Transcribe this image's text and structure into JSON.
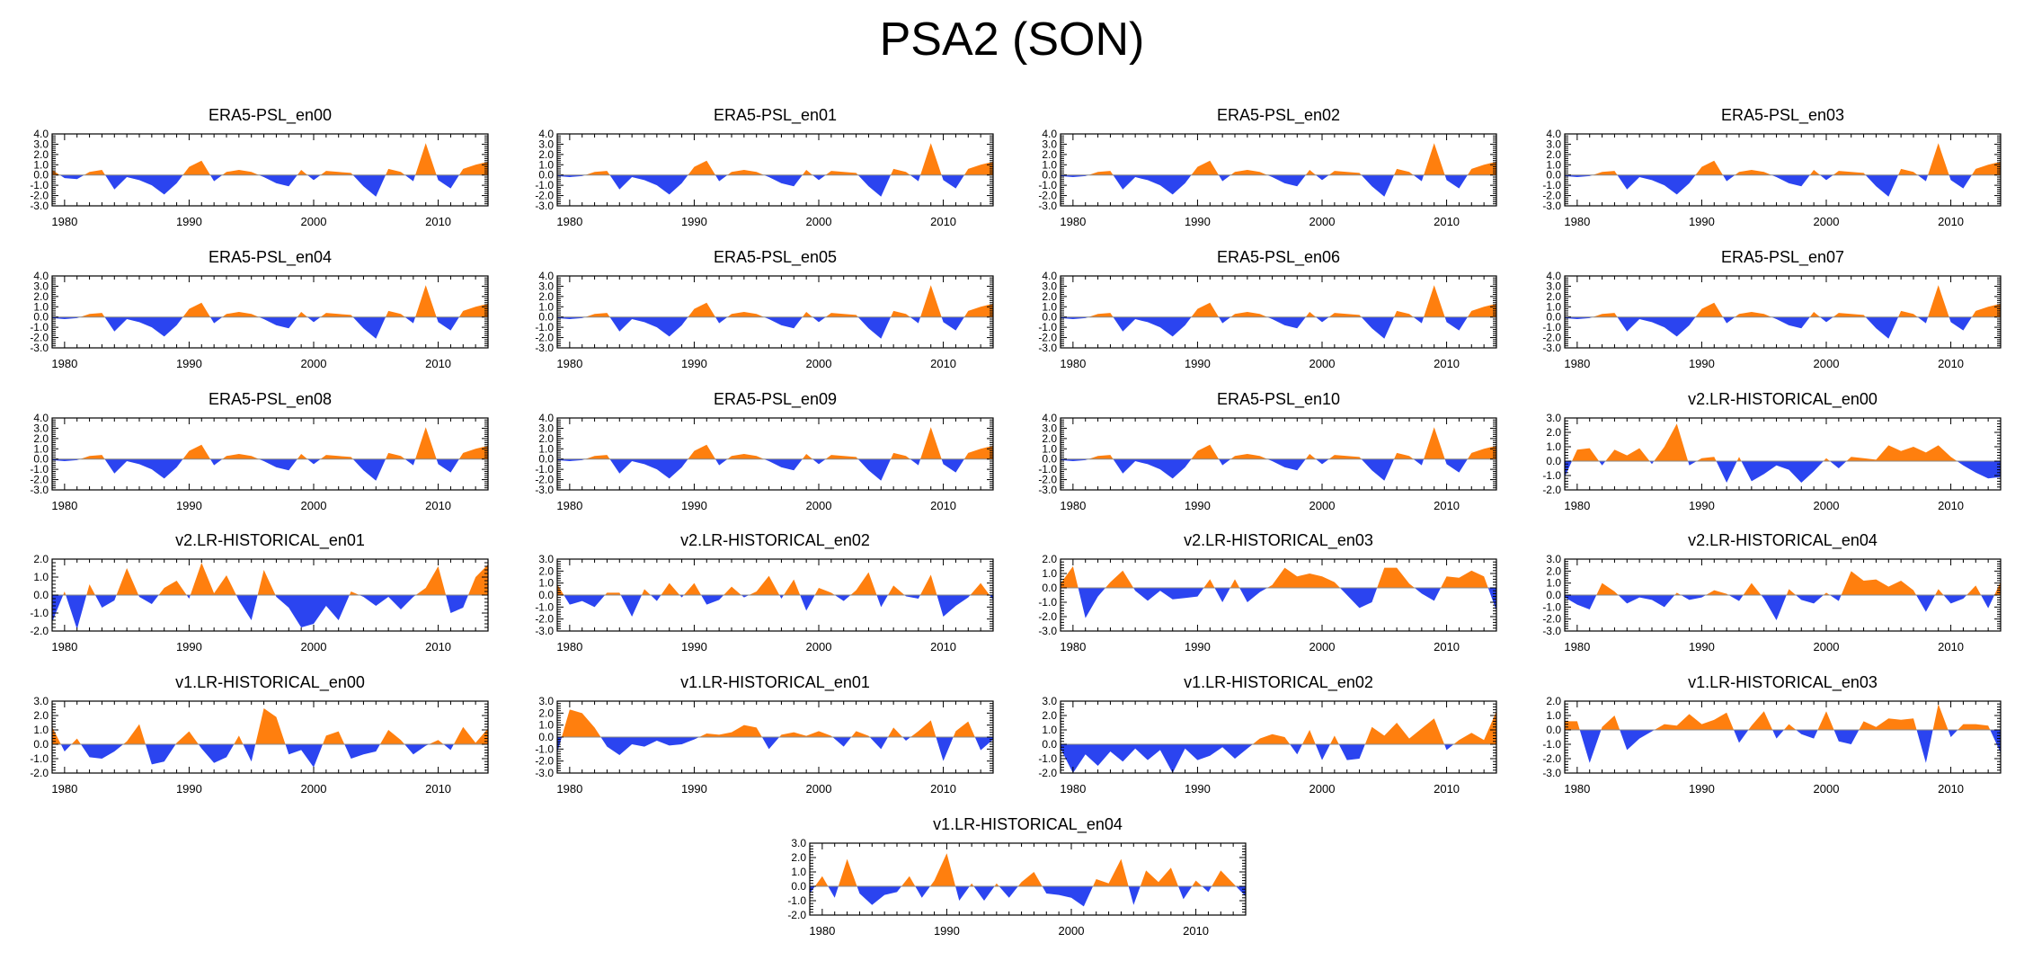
{
  "figure": {
    "title": "PSA2 (SON)"
  },
  "colors": {
    "positive": "#ff7f0e",
    "negative": "#2b44f0",
    "axis": "#000000",
    "zero_line": "#888888"
  },
  "chart_data": [
    {
      "type": "area",
      "title": "ERA5-PSL_en00",
      "x_start": 1979,
      "x_end": 2014,
      "xticks": [
        1980,
        1990,
        2000,
        2010
      ],
      "yticks": [
        "4.0",
        "3.0",
        "2.0",
        "1.0",
        "0.0",
        "-1.0",
        "-2.0",
        "-3.0"
      ],
      "ylim": [
        -3,
        4
      ],
      "values": [
        0.5,
        -0.3,
        -0.4,
        0.3,
        0.5,
        -1.4,
        -0.2,
        -0.5,
        -1.0,
        -1.9,
        -0.8,
        0.8,
        1.4,
        -0.6,
        0.3,
        0.5,
        0.3,
        -0.2,
        -0.8,
        -1.1,
        0.5,
        -0.5,
        0.4,
        0.3,
        0.2,
        -1.1,
        -2.1,
        0.6,
        0.3,
        -0.6,
        3.1,
        -0.5,
        -1.3,
        0.6,
        1.0,
        1.3
      ]
    },
    {
      "type": "area",
      "title": "ERA5-PSL_en01",
      "x_start": 1979,
      "x_end": 2014,
      "xticks": [
        1980,
        1990,
        2000,
        2010
      ],
      "yticks": [
        "4.0",
        "3.0",
        "2.0",
        "1.0",
        "0.0",
        "-1.0",
        "-2.0",
        "-3.0"
      ],
      "ylim": [
        -3,
        4
      ],
      "values": [
        -0.1,
        -0.2,
        -0.1,
        0.3,
        0.4,
        -1.4,
        -0.2,
        -0.5,
        -1.0,
        -1.9,
        -0.8,
        0.8,
        1.4,
        -0.6,
        0.3,
        0.5,
        0.3,
        -0.2,
        -0.8,
        -1.1,
        0.5,
        -0.5,
        0.4,
        0.3,
        0.2,
        -1.1,
        -2.1,
        0.6,
        0.3,
        -0.6,
        3.1,
        -0.5,
        -1.3,
        0.6,
        1.0,
        1.3
      ]
    },
    {
      "type": "area",
      "title": "ERA5-PSL_en02",
      "x_start": 1979,
      "x_end": 2014,
      "xticks": [
        1980,
        1990,
        2000,
        2010
      ],
      "yticks": [
        "4.0",
        "3.0",
        "2.0",
        "1.0",
        "0.0",
        "-1.0",
        "-2.0",
        "-3.0"
      ],
      "ylim": [
        -3,
        4
      ],
      "values": [
        -0.1,
        -0.2,
        -0.1,
        0.3,
        0.4,
        -1.4,
        -0.2,
        -0.5,
        -1.0,
        -1.9,
        -0.8,
        0.8,
        1.4,
        -0.6,
        0.3,
        0.5,
        0.3,
        -0.2,
        -0.8,
        -1.1,
        0.5,
        -0.5,
        0.4,
        0.3,
        0.2,
        -1.1,
        -2.1,
        0.6,
        0.3,
        -0.6,
        3.1,
        -0.5,
        -1.3,
        0.6,
        1.0,
        1.3
      ]
    },
    {
      "type": "area",
      "title": "ERA5-PSL_en03",
      "x_start": 1979,
      "x_end": 2014,
      "xticks": [
        1980,
        1990,
        2000,
        2010
      ],
      "yticks": [
        "4.0",
        "3.0",
        "2.0",
        "1.0",
        "0.0",
        "-1.0",
        "-2.0",
        "-3.0"
      ],
      "ylim": [
        -3,
        4
      ],
      "values": [
        -0.1,
        -0.2,
        -0.1,
        0.3,
        0.4,
        -1.4,
        -0.2,
        -0.5,
        -1.0,
        -1.9,
        -0.8,
        0.8,
        1.4,
        -0.6,
        0.3,
        0.5,
        0.3,
        -0.2,
        -0.8,
        -1.1,
        0.5,
        -0.5,
        0.4,
        0.3,
        0.2,
        -1.1,
        -2.1,
        0.6,
        0.3,
        -0.6,
        3.1,
        -0.5,
        -1.3,
        0.6,
        1.0,
        1.3
      ]
    },
    {
      "type": "area",
      "title": "ERA5-PSL_en04",
      "x_start": 1979,
      "x_end": 2014,
      "xticks": [
        1980,
        1990,
        2000,
        2010
      ],
      "yticks": [
        "4.0",
        "3.0",
        "2.0",
        "1.0",
        "0.0",
        "-1.0",
        "-2.0",
        "-3.0"
      ],
      "ylim": [
        -3,
        4
      ],
      "values": [
        -0.1,
        -0.2,
        -0.1,
        0.3,
        0.4,
        -1.4,
        -0.2,
        -0.5,
        -1.0,
        -1.9,
        -0.8,
        0.8,
        1.4,
        -0.6,
        0.3,
        0.5,
        0.3,
        -0.2,
        -0.8,
        -1.1,
        0.5,
        -0.5,
        0.4,
        0.3,
        0.2,
        -1.1,
        -2.1,
        0.6,
        0.3,
        -0.6,
        3.1,
        -0.5,
        -1.3,
        0.6,
        1.0,
        1.3
      ]
    },
    {
      "type": "area",
      "title": "ERA5-PSL_en05",
      "x_start": 1979,
      "x_end": 2014,
      "xticks": [
        1980,
        1990,
        2000,
        2010
      ],
      "yticks": [
        "4.0",
        "3.0",
        "2.0",
        "1.0",
        "0.0",
        "-1.0",
        "-2.0",
        "-3.0"
      ],
      "ylim": [
        -3,
        4
      ],
      "values": [
        -0.1,
        -0.2,
        -0.1,
        0.3,
        0.4,
        -1.4,
        -0.2,
        -0.5,
        -1.0,
        -1.9,
        -0.8,
        0.8,
        1.4,
        -0.6,
        0.3,
        0.5,
        0.3,
        -0.2,
        -0.8,
        -1.1,
        0.5,
        -0.5,
        0.4,
        0.3,
        0.2,
        -1.1,
        -2.1,
        0.6,
        0.3,
        -0.6,
        3.1,
        -0.5,
        -1.3,
        0.6,
        1.0,
        1.3
      ]
    },
    {
      "type": "area",
      "title": "ERA5-PSL_en06",
      "x_start": 1979,
      "x_end": 2014,
      "xticks": [
        1980,
        1990,
        2000,
        2010
      ],
      "yticks": [
        "4.0",
        "3.0",
        "2.0",
        "1.0",
        "0.0",
        "-1.0",
        "-2.0",
        "-3.0"
      ],
      "ylim": [
        -3,
        4
      ],
      "values": [
        -0.1,
        -0.2,
        -0.1,
        0.3,
        0.4,
        -1.4,
        -0.2,
        -0.5,
        -1.0,
        -1.9,
        -0.8,
        0.8,
        1.4,
        -0.6,
        0.3,
        0.5,
        0.3,
        -0.2,
        -0.8,
        -1.1,
        0.5,
        -0.5,
        0.4,
        0.3,
        0.2,
        -1.1,
        -2.1,
        0.6,
        0.3,
        -0.6,
        3.1,
        -0.5,
        -1.3,
        0.6,
        1.0,
        1.3
      ]
    },
    {
      "type": "area",
      "title": "ERA5-PSL_en07",
      "x_start": 1979,
      "x_end": 2014,
      "xticks": [
        1980,
        1990,
        2000,
        2010
      ],
      "yticks": [
        "4.0",
        "3.0",
        "2.0",
        "1.0",
        "0.0",
        "-1.0",
        "-2.0",
        "-3.0"
      ],
      "ylim": [
        -3,
        4
      ],
      "values": [
        -0.1,
        -0.2,
        -0.1,
        0.3,
        0.4,
        -1.4,
        -0.2,
        -0.5,
        -1.0,
        -1.9,
        -0.8,
        0.8,
        1.4,
        -0.6,
        0.3,
        0.5,
        0.3,
        -0.2,
        -0.8,
        -1.1,
        0.5,
        -0.5,
        0.4,
        0.3,
        0.2,
        -1.1,
        -2.1,
        0.6,
        0.3,
        -0.6,
        3.1,
        -0.5,
        -1.3,
        0.6,
        1.0,
        1.3
      ]
    },
    {
      "type": "area",
      "title": "ERA5-PSL_en08",
      "x_start": 1979,
      "x_end": 2014,
      "xticks": [
        1980,
        1990,
        2000,
        2010
      ],
      "yticks": [
        "4.0",
        "3.0",
        "2.0",
        "1.0",
        "0.0",
        "-1.0",
        "-2.0",
        "-3.0"
      ],
      "ylim": [
        -3,
        4
      ],
      "values": [
        -0.1,
        -0.2,
        -0.1,
        0.3,
        0.4,
        -1.4,
        -0.2,
        -0.5,
        -1.0,
        -1.9,
        -0.8,
        0.8,
        1.4,
        -0.6,
        0.3,
        0.5,
        0.3,
        -0.2,
        -0.8,
        -1.1,
        0.5,
        -0.5,
        0.4,
        0.3,
        0.2,
        -1.1,
        -2.1,
        0.6,
        0.3,
        -0.6,
        3.1,
        -0.5,
        -1.3,
        0.6,
        1.0,
        1.3
      ]
    },
    {
      "type": "area",
      "title": "ERA5-PSL_en09",
      "x_start": 1979,
      "x_end": 2014,
      "xticks": [
        1980,
        1990,
        2000,
        2010
      ],
      "yticks": [
        "4.0",
        "3.0",
        "2.0",
        "1.0",
        "0.0",
        "-1.0",
        "-2.0",
        "-3.0"
      ],
      "ylim": [
        -3,
        4
      ],
      "values": [
        -0.1,
        -0.2,
        -0.1,
        0.3,
        0.4,
        -1.4,
        -0.2,
        -0.5,
        -1.0,
        -1.9,
        -0.8,
        0.8,
        1.4,
        -0.6,
        0.3,
        0.5,
        0.3,
        -0.2,
        -0.8,
        -1.1,
        0.5,
        -0.5,
        0.4,
        0.3,
        0.2,
        -1.1,
        -2.1,
        0.6,
        0.3,
        -0.6,
        3.1,
        -0.5,
        -1.3,
        0.6,
        1.0,
        1.3
      ]
    },
    {
      "type": "area",
      "title": "ERA5-PSL_en10",
      "x_start": 1979,
      "x_end": 2014,
      "xticks": [
        1980,
        1990,
        2000,
        2010
      ],
      "yticks": [
        "4.0",
        "3.0",
        "2.0",
        "1.0",
        "0.0",
        "-1.0",
        "-2.0",
        "-3.0"
      ],
      "ylim": [
        -3,
        4
      ],
      "values": [
        -0.1,
        -0.2,
        -0.1,
        0.3,
        0.4,
        -1.4,
        -0.2,
        -0.5,
        -1.0,
        -1.9,
        -0.8,
        0.8,
        1.4,
        -0.6,
        0.3,
        0.5,
        0.3,
        -0.2,
        -0.8,
        -1.1,
        0.5,
        -0.5,
        0.4,
        0.3,
        0.2,
        -1.1,
        -2.1,
        0.6,
        0.3,
        -0.6,
        3.1,
        -0.5,
        -1.3,
        0.6,
        1.0,
        1.3
      ]
    },
    {
      "type": "area",
      "title": "v2.LR-HISTORICAL_en00",
      "x_start": 1979,
      "x_end": 2014,
      "xticks": [
        1980,
        1990,
        2000,
        2010
      ],
      "yticks": [
        "3.0",
        "2.0",
        "1.0",
        "0.0",
        "-1.0",
        "-2.0"
      ],
      "ylim": [
        -2,
        3
      ],
      "values": [
        -1.1,
        0.8,
        0.9,
        -0.3,
        0.8,
        0.4,
        0.9,
        -0.2,
        1.0,
        2.6,
        -0.3,
        0.2,
        0.3,
        -1.5,
        0.3,
        -1.4,
        -0.9,
        -0.3,
        -0.6,
        -1.5,
        -0.7,
        0.2,
        -0.5,
        0.3,
        0.2,
        0.1,
        1.1,
        0.7,
        1.0,
        0.6,
        1.1,
        0.3,
        -0.3,
        -0.8,
        -1.2,
        -1.1
      ]
    },
    {
      "type": "area",
      "title": "v2.LR-HISTORICAL_en01",
      "x_start": 1979,
      "x_end": 2014,
      "xticks": [
        1980,
        1990,
        2000,
        2010
      ],
      "yticks": [
        "2.0",
        "1.0",
        "0.0",
        "-1.0",
        "-2.0"
      ],
      "ylim": [
        -2,
        2
      ],
      "values": [
        -1.5,
        0.2,
        -1.9,
        0.6,
        -0.7,
        -0.3,
        1.5,
        -0.1,
        -0.5,
        0.4,
        0.8,
        -0.2,
        1.8,
        0.1,
        1.1,
        -0.3,
        -1.4,
        1.4,
        -0.1,
        -0.7,
        -1.8,
        -1.6,
        -0.6,
        -1.4,
        0.2,
        -0.1,
        -0.6,
        -0.1,
        -0.8,
        -0.1,
        0.4,
        1.6,
        -1.0,
        -0.7,
        1.0,
        1.7
      ]
    },
    {
      "type": "area",
      "title": "v2.LR-HISTORICAL_en02",
      "x_start": 1979,
      "x_end": 2014,
      "xticks": [
        1980,
        1990,
        2000,
        2010
      ],
      "yticks": [
        "3.0",
        "2.0",
        "1.0",
        "0.0",
        "-1.0",
        "-2.0",
        "-3.0"
      ],
      "ylim": [
        -3,
        3
      ],
      "values": [
        0.9,
        -0.8,
        -0.5,
        -1.0,
        0.2,
        0.2,
        -1.8,
        0.5,
        -0.5,
        1.0,
        -0.2,
        1.0,
        -0.8,
        -0.4,
        0.7,
        -0.2,
        0.3,
        1.6,
        -0.3,
        1.3,
        -1.3,
        0.6,
        0.2,
        -0.5,
        0.4,
        1.9,
        -1.0,
        0.8,
        -0.1,
        -0.3,
        1.7,
        -1.8,
        -0.9,
        -0.2,
        1.0,
        -0.4
      ]
    },
    {
      "type": "area",
      "title": "v2.LR-HISTORICAL_en03",
      "x_start": 1979,
      "x_end": 2014,
      "xticks": [
        1980,
        1990,
        2000,
        2010
      ],
      "yticks": [
        "2.0",
        "1.0",
        "0.0",
        "-1.0",
        "-2.0",
        "-3.0"
      ],
      "ylim": [
        -3,
        2
      ],
      "values": [
        0.3,
        1.5,
        -2.1,
        -0.6,
        0.4,
        1.2,
        -0.2,
        -0.9,
        -0.2,
        -0.8,
        -0.7,
        -0.6,
        0.6,
        -1.0,
        0.6,
        -1.0,
        -0.3,
        0.2,
        1.4,
        0.8,
        1.0,
        0.8,
        0.4,
        -0.5,
        -1.4,
        -1.0,
        1.4,
        1.4,
        0.3,
        -0.4,
        -0.9,
        0.8,
        0.7,
        1.2,
        0.8,
        -1.6
      ]
    },
    {
      "type": "area",
      "title": "v2.LR-HISTORICAL_en04",
      "x_start": 1979,
      "x_end": 2014,
      "xticks": [
        1980,
        1990,
        2000,
        2010
      ],
      "yticks": [
        "3.0",
        "2.0",
        "1.0",
        "0.0",
        "-1.0",
        "-2.0",
        "-3.0"
      ],
      "ylim": [
        -3,
        3
      ],
      "values": [
        -0.2,
        -0.8,
        -1.2,
        1.0,
        0.3,
        -0.7,
        -0.2,
        -0.4,
        -1.0,
        0.2,
        -0.4,
        -0.2,
        0.4,
        0.1,
        -0.5,
        1.0,
        -0.3,
        -2.1,
        0.5,
        -0.4,
        -0.7,
        0.2,
        -0.5,
        2.0,
        1.2,
        1.3,
        0.7,
        1.2,
        0.4,
        -1.4,
        0.5,
        -0.7,
        -0.3,
        0.8,
        -1.1,
        1.1
      ]
    },
    {
      "type": "area",
      "title": "v1.LR-HISTORICAL_en00",
      "x_start": 1979,
      "x_end": 2014,
      "xticks": [
        1980,
        1990,
        2000,
        2010
      ],
      "yticks": [
        "3.0",
        "2.0",
        "1.0",
        "0.0",
        "-1.0",
        "-2.0"
      ],
      "ylim": [
        -2,
        3
      ],
      "values": [
        1.2,
        -0.5,
        0.4,
        -0.9,
        -1.0,
        -0.5,
        0.2,
        1.4,
        -1.4,
        -1.2,
        0.1,
        0.9,
        -0.3,
        -1.3,
        -0.9,
        0.6,
        -1.2,
        2.5,
        1.9,
        -0.7,
        -0.4,
        -1.6,
        0.6,
        0.9,
        -1.0,
        -0.7,
        -0.5,
        1.0,
        0.3,
        -0.7,
        -0.1,
        0.3,
        -0.4,
        1.2,
        0.1,
        1.1
      ]
    },
    {
      "type": "area",
      "title": "v1.LR-HISTORICAL_en01",
      "x_start": 1979,
      "x_end": 2014,
      "xticks": [
        1980,
        1990,
        2000,
        2010
      ],
      "yticks": [
        "3.0",
        "2.0",
        "1.0",
        "0.0",
        "-1.0",
        "-2.0",
        "-3.0"
      ],
      "ylim": [
        -3,
        3
      ],
      "values": [
        -1.3,
        2.3,
        2.0,
        0.8,
        -0.8,
        -1.5,
        -0.6,
        -0.8,
        -0.3,
        -0.7,
        -0.6,
        -0.2,
        0.3,
        0.2,
        0.4,
        1.0,
        0.8,
        -1.0,
        0.2,
        0.4,
        0.1,
        0.5,
        0.1,
        -0.8,
        0.5,
        0.1,
        -1.0,
        0.8,
        -0.3,
        0.5,
        1.4,
        -2.0,
        0.5,
        1.3,
        -1.1,
        -0.2
      ]
    },
    {
      "type": "area",
      "title": "v1.LR-HISTORICAL_en02",
      "x_start": 1979,
      "x_end": 2014,
      "xticks": [
        1980,
        1990,
        2000,
        2010
      ],
      "yticks": [
        "3.0",
        "2.0",
        "1.0",
        "0.0",
        "-1.0",
        "-2.0"
      ],
      "ylim": [
        -2,
        3
      ],
      "values": [
        -0.3,
        -2.0,
        -0.7,
        -1.5,
        -0.5,
        -1.2,
        -0.3,
        -1.1,
        -0.4,
        -2.0,
        -0.3,
        -1.1,
        -0.8,
        -0.2,
        -1.0,
        -0.3,
        0.4,
        0.7,
        0.5,
        -0.7,
        1.0,
        -1.1,
        0.6,
        -1.1,
        -1.0,
        1.2,
        0.6,
        1.5,
        0.4,
        1.1,
        1.8,
        -0.4,
        0.3,
        0.8,
        0.3,
        2.3
      ]
    },
    {
      "type": "area",
      "title": "v1.LR-HISTORICAL_en03",
      "x_start": 1979,
      "x_end": 2014,
      "xticks": [
        1980,
        1990,
        2000,
        2010
      ],
      "yticks": [
        "2.0",
        "1.0",
        "0.0",
        "-1.0",
        "-2.0",
        "-3.0"
      ],
      "ylim": [
        -3,
        2
      ],
      "values": [
        0.6,
        0.6,
        -2.3,
        0.2,
        1.0,
        -1.4,
        -0.6,
        -0.1,
        0.4,
        0.3,
        1.1,
        0.4,
        0.7,
        1.2,
        -0.9,
        0.3,
        1.3,
        -0.6,
        0.4,
        -0.3,
        -0.6,
        1.3,
        -0.8,
        -1.0,
        0.6,
        0.2,
        0.8,
        0.7,
        0.8,
        -2.3,
        1.8,
        -0.5,
        0.4,
        0.4,
        0.3,
        -1.6
      ]
    },
    {
      "type": "area",
      "title": "v1.LR-HISTORICAL_en04",
      "x_start": 1979,
      "x_end": 2014,
      "xticks": [
        1980,
        1990,
        2000,
        2010
      ],
      "yticks": [
        "3.0",
        "2.0",
        "1.0",
        "0.0",
        "-1.0",
        "-2.0"
      ],
      "ylim": [
        -2,
        3
      ],
      "values": [
        -0.5,
        0.7,
        -0.8,
        1.9,
        -0.5,
        -1.3,
        -0.6,
        -0.4,
        0.7,
        -0.8,
        0.4,
        2.3,
        -1.0,
        0.2,
        -1.0,
        0.2,
        -0.8,
        0.3,
        1.0,
        -0.5,
        -0.6,
        -0.8,
        -1.4,
        0.5,
        0.2,
        1.9,
        -1.3,
        1.1,
        0.3,
        1.3,
        -0.9,
        0.4,
        -0.4,
        1.1,
        0.2,
        -0.7
      ]
    }
  ]
}
